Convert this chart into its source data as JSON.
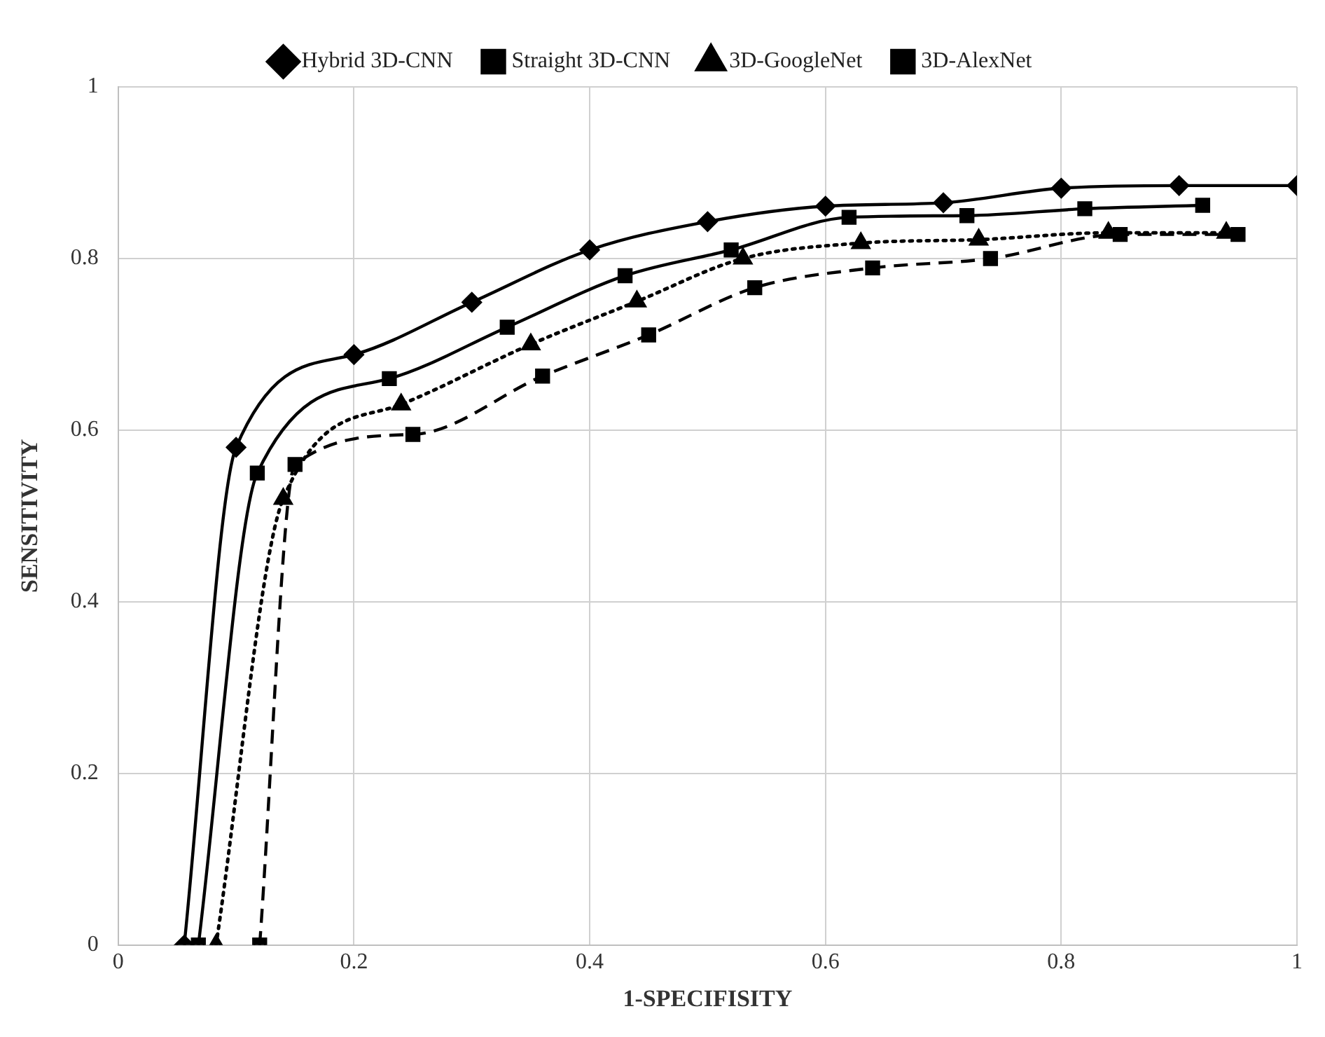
{
  "chart_data": {
    "type": "line",
    "xlabel": "1-SPECIFISITY",
    "ylabel": "SENSITIVITY",
    "xlim": [
      0,
      1
    ],
    "xticks": [
      0,
      0.2,
      0.4,
      0.6,
      0.8,
      1
    ],
    "ylim": [
      0,
      1
    ],
    "yticks": [
      0,
      0.2,
      0.4,
      0.6,
      0.8,
      1
    ],
    "grid": true,
    "legend": "top",
    "series": [
      {
        "name": "Hybrid 3D-CNN",
        "color": "#000000",
        "marker": "diamond",
        "line_style": "solid",
        "x": [
          0.056,
          0.1,
          0.2,
          0.3,
          0.4,
          0.5,
          0.6,
          0.7,
          0.8,
          0.9,
          1
        ],
        "values": [
          0,
          0.58,
          0.688,
          0.749,
          0.81,
          0.843,
          0.861,
          0.865,
          0.882,
          0.885,
          0.885
        ]
      },
      {
        "name": "Straight 3D-CNN",
        "color": "#000000",
        "marker": "square",
        "line_style": "solid",
        "x": [
          0.068,
          0.118,
          0.23,
          0.33,
          0.43,
          0.52,
          0.62,
          0.72,
          0.82,
          0.92
        ],
        "values": [
          0,
          0.55,
          0.66,
          0.72,
          0.78,
          0.81,
          0.848,
          0.85,
          0.858,
          0.862
        ]
      },
      {
        "name": "3D-GoogleNet",
        "color": "#000000",
        "marker": "triangle",
        "line_style": "dotted",
        "x": [
          0.083,
          0.14,
          0.24,
          0.35,
          0.44,
          0.53,
          0.63,
          0.73,
          0.84,
          0.94
        ],
        "values": [
          0,
          0.52,
          0.63,
          0.7,
          0.75,
          0.8,
          0.818,
          0.822,
          0.83,
          0.83
        ]
      },
      {
        "name": "3D-AlexNet",
        "color": "#000000",
        "marker": "square",
        "line_style": "dashed",
        "x": [
          0.12,
          0.15,
          0.25,
          0.36,
          0.45,
          0.54,
          0.64,
          0.74,
          0.85,
          0.95
        ],
        "values": [
          0,
          0.56,
          0.595,
          0.663,
          0.711,
          0.766,
          0.789,
          0.8,
          0.828,
          0.828
        ]
      }
    ]
  }
}
